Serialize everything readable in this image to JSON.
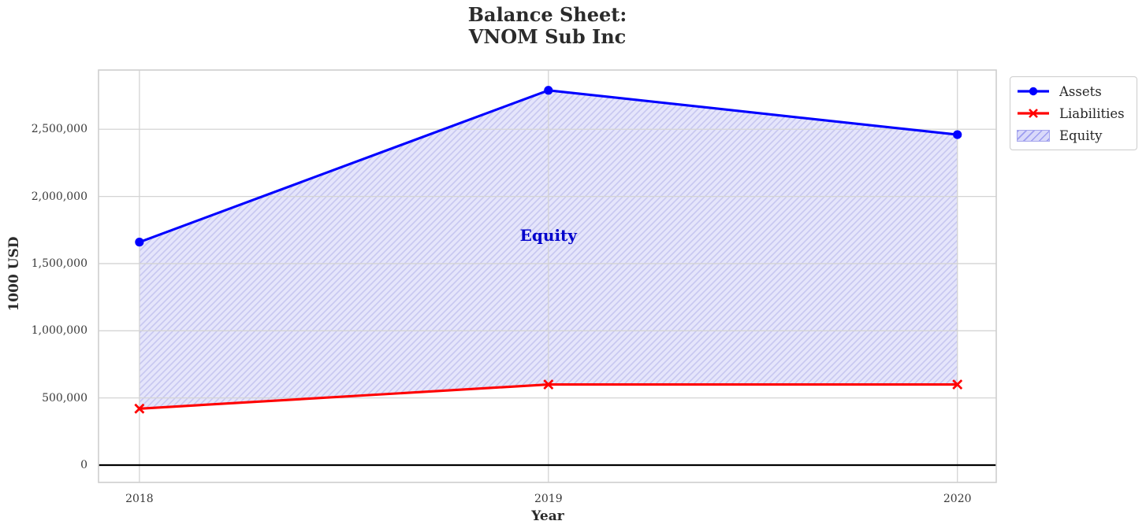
{
  "title": {
    "line1": "Balance Sheet:",
    "line2": "VNOM Sub Inc"
  },
  "axes": {
    "xlabel": "Year",
    "ylabel": "1000 USD"
  },
  "chart_data": {
    "type": "line",
    "title": "Balance Sheet: VNOM Sub Inc",
    "xlabel": "Year",
    "ylabel": "1000 USD",
    "x": [
      2018,
      2019,
      2020
    ],
    "series": [
      {
        "name": "Assets",
        "kind": "line",
        "color": "#0000ff",
        "marker": "circle",
        "values": [
          1660000,
          2790000,
          2460000
        ]
      },
      {
        "name": "Liabilities",
        "kind": "line",
        "color": "#ff0000",
        "marker": "x",
        "values": [
          420000,
          600000,
          600000
        ]
      },
      {
        "name": "Equity",
        "kind": "area_between",
        "between": [
          "Liabilities",
          "Assets"
        ],
        "fill_color": "#e5e5fb",
        "hatch": "///",
        "hatch_color": "#c7c7f0",
        "values": [
          1240000,
          2190000,
          1860000
        ]
      }
    ],
    "annotations": [
      {
        "text": "Equity",
        "x": 2019,
        "y": 1710000,
        "color": "#0000cc"
      }
    ],
    "xlim": [
      2017.9,
      2020.095
    ],
    "ylim": [
      -129000,
      2941000
    ],
    "xticks": [
      2018,
      2019,
      2020
    ],
    "xtick_labels": [
      "2018",
      "2019",
      "2020"
    ],
    "yticks": [
      0,
      500000,
      1000000,
      1500000,
      2000000,
      2500000
    ],
    "ytick_labels": [
      "0",
      "500,000",
      "1,000,000",
      "1,500,000",
      "2,000,000",
      "2,500,000"
    ],
    "grid": true,
    "zero_line": true,
    "zero_line_color": "#000000",
    "legend_position": "upper right"
  },
  "colors": {
    "assets_line": "#0000ff",
    "liabilities_line": "#ff0000",
    "equity_fill": "#e5e5fb",
    "equity_hatch": "#c7c7f0",
    "annotation_text": "#0000cc",
    "grid_line": "#d4d4d4",
    "spine": "#cfcfcf",
    "tick_text": "#3a3a3a",
    "title_text": "#2b2b2b"
  }
}
